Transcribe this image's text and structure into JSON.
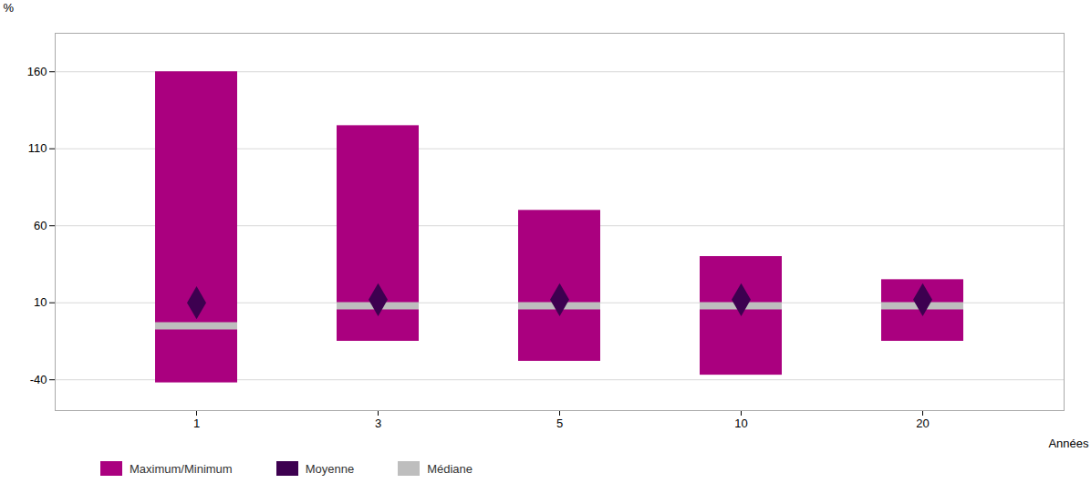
{
  "chart_data": {
    "type": "range_bar",
    "categories": [
      "1",
      "3",
      "5",
      "10",
      "20"
    ],
    "series": [
      {
        "name": "Maximum/Minimum",
        "type": "bar",
        "color": "#AA007F",
        "max": [
          160,
          125,
          70,
          40,
          25
        ],
        "min": [
          -42,
          -15,
          -28,
          -37,
          -15
        ]
      },
      {
        "name": "Moyenne",
        "type": "scatter",
        "marker": "diamond",
        "color": "#3D0050",
        "values": [
          10,
          12,
          12,
          12,
          12
        ]
      },
      {
        "name": "Médiane",
        "type": "tick",
        "color": "#BEBEBE",
        "values": [
          -5,
          8,
          8,
          8,
          8
        ]
      }
    ],
    "xlabel": "Années",
    "ylabel": "%",
    "ylim": [
      -60,
      185
    ],
    "yticks": [
      -40,
      10,
      60,
      110,
      160
    ],
    "grid": true,
    "legend": "bottom"
  }
}
